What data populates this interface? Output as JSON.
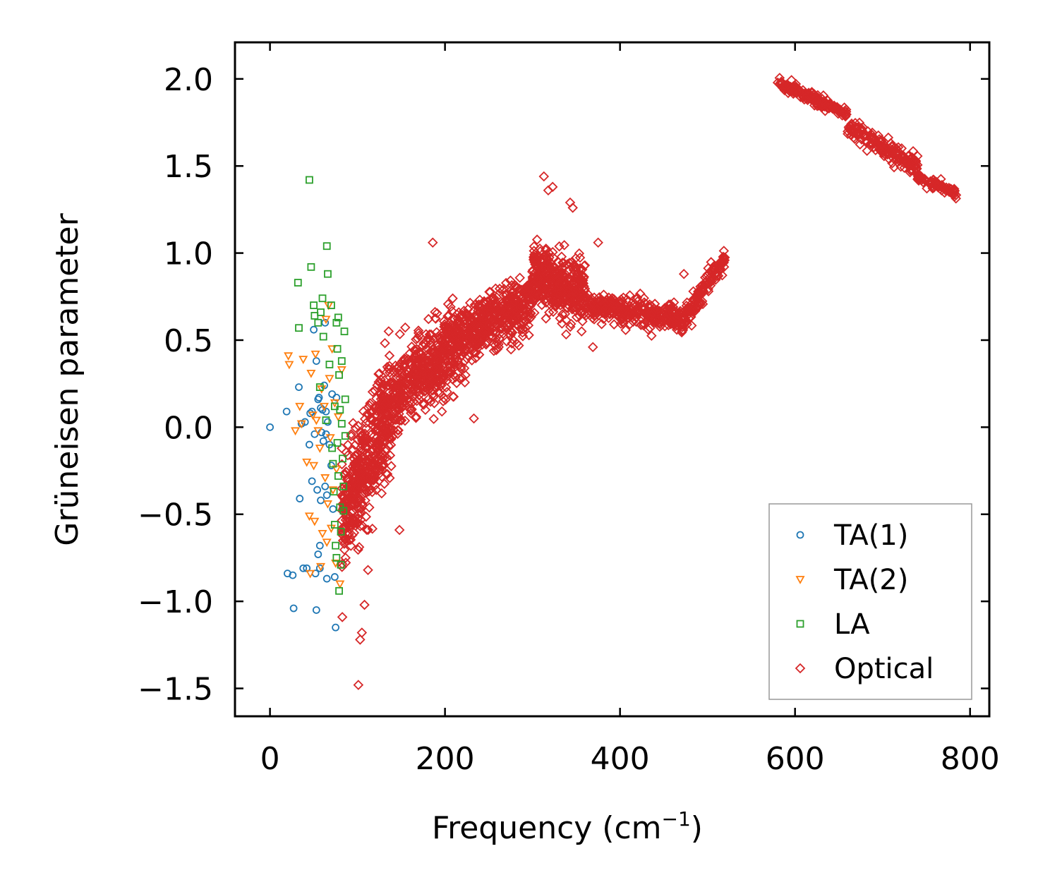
{
  "chart_data": {
    "type": "scatter",
    "title": "",
    "xlabel": "Frequency (cm",
    "xlabel_sup": "−1",
    "xlabel_close": ")",
    "ylabel": "Grüneisen parameter",
    "xlim": [
      -40,
      822
    ],
    "ylim": [
      -1.66,
      2.21
    ],
    "xticks": [
      0,
      200,
      400,
      600,
      800
    ],
    "xtick_labels": [
      "0",
      "200",
      "400",
      "600",
      "800"
    ],
    "yticks": [
      -1.5,
      -1.0,
      -0.5,
      0.0,
      0.5,
      1.0,
      1.5,
      2.0
    ],
    "ytick_labels": [
      "−1.5",
      "−1.0",
      "−0.5",
      "0.0",
      "0.5",
      "1.0",
      "1.5",
      "2.0"
    ],
    "legend_position": "bottom-right",
    "grid": false,
    "series": [
      {
        "name": "TA(1)",
        "marker": "circle",
        "color": "#1f77b4",
        "points": [
          [
            0,
            0.0
          ],
          [
            19,
            0.09
          ],
          [
            20,
            -0.84
          ],
          [
            26,
            -0.85
          ],
          [
            27,
            -1.04
          ],
          [
            33,
            0.23
          ],
          [
            34,
            -0.41
          ],
          [
            36,
            0.02
          ],
          [
            38,
            -0.81
          ],
          [
            40,
            0.03
          ],
          [
            42,
            -0.81
          ],
          [
            45,
            -0.1
          ],
          [
            46,
            0.08
          ],
          [
            48,
            -0.31
          ],
          [
            48,
            0.09
          ],
          [
            50,
            0.56
          ],
          [
            51,
            -0.04
          ],
          [
            52,
            -0.84
          ],
          [
            53,
            -1.05
          ],
          [
            53,
            0.38
          ],
          [
            54,
            -0.36
          ],
          [
            55,
            -0.73
          ],
          [
            55,
            0.16
          ],
          [
            56,
            0.17
          ],
          [
            57,
            -0.81
          ],
          [
            57,
            -0.68
          ],
          [
            58,
            0.11
          ],
          [
            58,
            -0.42
          ],
          [
            59,
            -0.03
          ],
          [
            60,
            0.1
          ],
          [
            61,
            -0.08
          ],
          [
            62,
            0.24
          ],
          [
            63,
            -0.34
          ],
          [
            63,
            0.6
          ],
          [
            64,
            0.09
          ],
          [
            64,
            -0.04
          ],
          [
            65,
            -0.87
          ],
          [
            65,
            -0.39
          ],
          [
            66,
            0.03
          ],
          [
            68,
            -0.1
          ],
          [
            70,
            -0.22
          ],
          [
            71,
            0.19
          ],
          [
            72,
            -0.47
          ],
          [
            74,
            -0.86
          ],
          [
            75,
            -1.15
          ],
          [
            76,
            0.17
          ]
        ]
      },
      {
        "name": "TA(2)",
        "marker": "triangle-down",
        "color": "#ff7f0e",
        "points": [
          [
            21,
            0.41
          ],
          [
            22,
            0.36
          ],
          [
            29,
            -0.02
          ],
          [
            34,
            0.12
          ],
          [
            36,
            0.02
          ],
          [
            38,
            0.39
          ],
          [
            42,
            -0.2
          ],
          [
            45,
            -0.51
          ],
          [
            46,
            -0.84
          ],
          [
            47,
            0.31
          ],
          [
            49,
            0.07
          ],
          [
            50,
            -0.22
          ],
          [
            51,
            -0.54
          ],
          [
            52,
            0.42
          ],
          [
            53,
            0.04
          ],
          [
            55,
            -0.02
          ],
          [
            57,
            -0.12
          ],
          [
            58,
            -0.8
          ],
          [
            59,
            0.22
          ],
          [
            60,
            -0.61
          ],
          [
            62,
            0.12
          ],
          [
            63,
            -0.29
          ],
          [
            64,
            0.62
          ],
          [
            65,
            -0.66
          ],
          [
            66,
            -0.44
          ],
          [
            67,
            0.7
          ],
          [
            68,
            0.28
          ],
          [
            69,
            -0.06
          ],
          [
            70,
            -0.58
          ],
          [
            71,
            0.45
          ],
          [
            72,
            -0.36
          ],
          [
            74,
            0.14
          ],
          [
            75,
            -0.78
          ],
          [
            76,
            -0.24
          ],
          [
            78,
            0.06
          ],
          [
            80,
            -0.9
          ],
          [
            82,
            0.33
          ]
        ]
      },
      {
        "name": "LA",
        "marker": "square",
        "color": "#2ca02c",
        "points": [
          [
            32,
            0.83
          ],
          [
            33,
            0.57
          ],
          [
            45,
            1.42
          ],
          [
            47,
            0.92
          ],
          [
            50,
            0.7
          ],
          [
            51,
            0.64
          ],
          [
            55,
            0.6
          ],
          [
            57,
            0.23
          ],
          [
            58,
            0.66
          ],
          [
            60,
            0.74
          ],
          [
            61,
            0.52
          ],
          [
            64,
            0.04
          ],
          [
            65,
            1.04
          ],
          [
            66,
            0.88
          ],
          [
            68,
            0.36
          ],
          [
            70,
            0.7
          ],
          [
            71,
            -0.12
          ],
          [
            72,
            -0.21
          ],
          [
            73,
            -0.37
          ],
          [
            74,
            0.12
          ],
          [
            74,
            -0.56
          ],
          [
            75,
            -0.68
          ],
          [
            76,
            -0.75
          ],
          [
            76,
            0.6
          ],
          [
            77,
            0.45
          ],
          [
            77,
            -0.09
          ],
          [
            78,
            0.63
          ],
          [
            78,
            -0.28
          ],
          [
            79,
            0.3
          ],
          [
            79,
            -0.94
          ],
          [
            80,
            0.1
          ],
          [
            80,
            -0.46
          ],
          [
            81,
            -0.6
          ],
          [
            81,
            -0.79
          ],
          [
            82,
            0.38
          ],
          [
            82,
            0.02
          ],
          [
            83,
            -0.18
          ],
          [
            84,
            -0.34
          ],
          [
            84,
            -0.48
          ],
          [
            85,
            0.55
          ],
          [
            86,
            0.16
          ],
          [
            86,
            -0.05
          ]
        ]
      },
      {
        "name": "Optical",
        "marker": "diamond",
        "color": "#d62728",
        "points": []
      }
    ],
    "optical_clusters": [
      {
        "x_range": [
          82,
          140
        ],
        "y_center": [
          -0.55,
          0.15
        ],
        "spread": 0.35,
        "count": 520
      },
      {
        "x_range": [
          140,
          220
        ],
        "y_center": [
          0.15,
          0.52
        ],
        "spread": 0.25,
        "count": 520
      },
      {
        "x_range": [
          220,
          300
        ],
        "y_center": [
          0.52,
          0.72
        ],
        "spread": 0.18,
        "count": 440
      },
      {
        "x_range": [
          300,
          360
        ],
        "y_center": [
          0.88,
          0.75
        ],
        "spread": 0.2,
        "count": 420
      },
      {
        "x_range": [
          360,
          470
        ],
        "y_center": [
          0.7,
          0.62
        ],
        "spread": 0.08,
        "count": 360
      },
      {
        "x_range": [
          470,
          520
        ],
        "y_center": [
          0.6,
          0.98
        ],
        "spread": 0.07,
        "count": 160
      },
      {
        "x_range": [
          580,
          660
        ],
        "y_center": [
          1.98,
          1.8
        ],
        "spread": 0.04,
        "count": 170
      },
      {
        "x_range": [
          660,
          740
        ],
        "y_center": [
          1.72,
          1.5
        ],
        "spread": 0.06,
        "count": 170
      },
      {
        "x_range": [
          740,
          785
        ],
        "y_center": [
          1.43,
          1.34
        ],
        "spread": 0.03,
        "count": 80
      }
    ],
    "optical_outliers": [
      [
        101,
        -1.48
      ],
      [
        103,
        -1.22
      ],
      [
        105,
        -1.18
      ],
      [
        108,
        -1.02
      ],
      [
        112,
        -0.82
      ],
      [
        148,
        -0.59
      ],
      [
        186,
        1.06
      ],
      [
        233,
        0.05
      ],
      [
        313,
        1.44
      ],
      [
        318,
        1.36
      ],
      [
        323,
        1.38
      ],
      [
        343,
        1.29
      ],
      [
        346,
        1.26
      ],
      [
        369,
        0.46
      ],
      [
        375,
        1.06
      ],
      [
        473,
        0.88
      ]
    ]
  }
}
